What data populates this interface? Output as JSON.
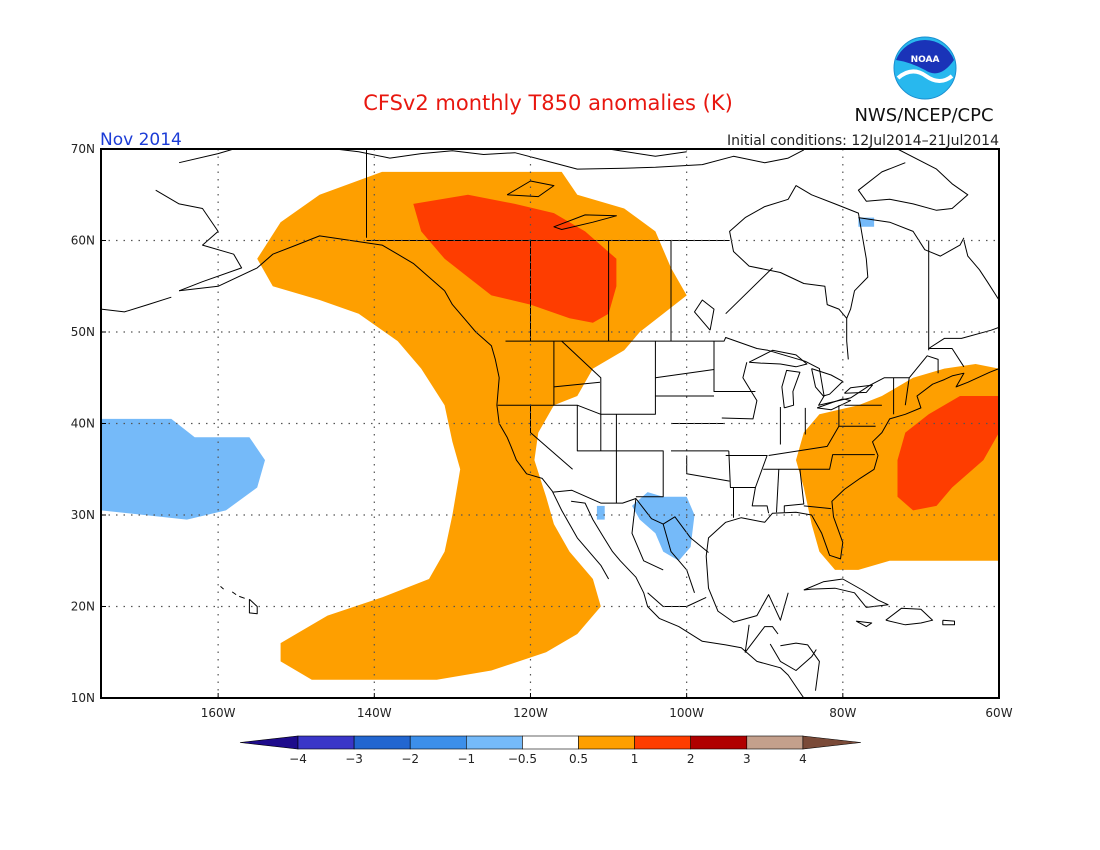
{
  "title": "CFSv2 monthly T850 anomalies (K)",
  "agency": "NWS/NCEP/CPC",
  "logo_text": "NOAA",
  "period": "Nov 2014",
  "initial_conditions": "Initial conditions: 12Jul2014–21Jul2014",
  "colors": {
    "title": "#e8170f",
    "period": "#1c3cd6",
    "logo_outer": "#28b8ee",
    "logo_inner": "#1a33b8",
    "bins": [
      "#1e0b8c",
      "#3a36c8",
      "#2266d0",
      "#3c8fea",
      "#75baf9",
      "#ffffff",
      "#fe9f00",
      "#fe3d00",
      "#b00000",
      "#c4a08c",
      "#7a4a38"
    ]
  },
  "map": {
    "projection": "equirectangular",
    "lon_range": [
      -175,
      -60
    ],
    "lat_range": [
      10,
      70
    ],
    "lon_ticks": [
      {
        "value": -160,
        "label": "160W"
      },
      {
        "value": -140,
        "label": "140W"
      },
      {
        "value": -120,
        "label": "120W"
      },
      {
        "value": -100,
        "label": "100W"
      },
      {
        "value": -80,
        "label": "80W"
      },
      {
        "value": -60,
        "label": "60W"
      }
    ],
    "lat_ticks": [
      {
        "value": 10,
        "label": "10N"
      },
      {
        "value": 20,
        "label": "20N"
      },
      {
        "value": 30,
        "label": "30N"
      },
      {
        "value": 40,
        "label": "40N"
      },
      {
        "value": 50,
        "label": "50N"
      },
      {
        "value": 60,
        "label": "60N"
      },
      {
        "value": 70,
        "label": "70N"
      }
    ],
    "anomaly_regions": [
      {
        "name": "NE Pacific and western Canada warm arc",
        "category": "0.5 to 1",
        "lonlat": [
          [
            -139,
            67.5
          ],
          [
            -116,
            67.5
          ],
          [
            -114,
            65
          ],
          [
            -108,
            63.5
          ],
          [
            -104,
            61
          ],
          [
            -102,
            57
          ],
          [
            -100,
            54
          ],
          [
            -103,
            52
          ],
          [
            -106,
            50
          ],
          [
            -108,
            48
          ],
          [
            -112,
            46
          ],
          [
            -114,
            43
          ],
          [
            -117,
            42
          ],
          [
            -119,
            39
          ],
          [
            -119.5,
            36
          ],
          [
            -118,
            32
          ],
          [
            -117,
            29
          ],
          [
            -115,
            26
          ],
          [
            -112,
            23
          ],
          [
            -111,
            20
          ],
          [
            -114,
            17
          ],
          [
            -118,
            15
          ],
          [
            -125,
            13
          ],
          [
            -132,
            12
          ],
          [
            -148,
            12
          ],
          [
            -152,
            14
          ],
          [
            -152,
            16
          ],
          [
            -146,
            19
          ],
          [
            -139,
            21
          ],
          [
            -133,
            23
          ],
          [
            -131,
            26
          ],
          [
            -130,
            30
          ],
          [
            -129,
            35
          ],
          [
            -130,
            38
          ],
          [
            -131,
            42
          ],
          [
            -134,
            46
          ],
          [
            -137,
            49
          ],
          [
            -142,
            52
          ],
          [
            -147,
            53.5
          ],
          [
            -153,
            55
          ],
          [
            -155,
            58
          ],
          [
            -152,
            62
          ],
          [
            -147,
            65
          ]
        ]
      },
      {
        "name": "Western Canada strong warm core",
        "category": "1 to 2",
        "lonlat": [
          [
            -135,
            64
          ],
          [
            -128,
            65
          ],
          [
            -122,
            64
          ],
          [
            -117,
            63
          ],
          [
            -113,
            61
          ],
          [
            -109,
            58
          ],
          [
            -109,
            55
          ],
          [
            -110,
            52
          ],
          [
            -112,
            51
          ],
          [
            -115,
            51.5
          ],
          [
            -120,
            53
          ],
          [
            -125,
            54
          ],
          [
            -128,
            56
          ],
          [
            -131,
            58
          ],
          [
            -134,
            61
          ]
        ]
      },
      {
        "name": "Eastern US and western Atlantic warm area",
        "category": "0.5 to 1",
        "lonlat": [
          [
            -60,
            46
          ],
          [
            -60,
            25
          ],
          [
            -74,
            25
          ],
          [
            -78,
            24
          ],
          [
            -81,
            24
          ],
          [
            -83,
            26
          ],
          [
            -84,
            29
          ],
          [
            -85,
            33
          ],
          [
            -86,
            36
          ],
          [
            -85,
            39
          ],
          [
            -83,
            41
          ],
          [
            -78,
            42
          ],
          [
            -75,
            43
          ],
          [
            -71,
            45
          ],
          [
            -67,
            46
          ],
          [
            -63,
            46.5
          ]
        ]
      },
      {
        "name": "Western Atlantic strong warm core",
        "category": "1 to 2",
        "lonlat": [
          [
            -60,
            43
          ],
          [
            -60,
            39
          ],
          [
            -62,
            36
          ],
          [
            -66,
            33
          ],
          [
            -68,
            31
          ],
          [
            -71,
            30.5
          ],
          [
            -73,
            32
          ],
          [
            -73,
            36
          ],
          [
            -72,
            39
          ],
          [
            -69,
            41
          ],
          [
            -65,
            43
          ]
        ]
      },
      {
        "name": "Central North Pacific cool area",
        "category": "-1 to -0.5",
        "lonlat": [
          [
            -175,
            40.5
          ],
          [
            -166,
            40.5
          ],
          [
            -163,
            38.5
          ],
          [
            -156,
            38.5
          ],
          [
            -154,
            36
          ],
          [
            -155,
            33
          ],
          [
            -159,
            30.5
          ],
          [
            -164,
            29.5
          ],
          [
            -175,
            30.5
          ]
        ]
      },
      {
        "name": "Northern Mexico and Texas cool area",
        "category": "-1 to -0.5",
        "lonlat": [
          [
            -103,
            32
          ],
          [
            -100,
            32
          ],
          [
            -99,
            30
          ],
          [
            -99.5,
            26.5
          ],
          [
            -101,
            25
          ],
          [
            -103,
            26
          ],
          [
            -104,
            28
          ],
          [
            -106,
            29.5
          ],
          [
            -107,
            31
          ],
          [
            -105,
            32.5
          ]
        ]
      },
      {
        "name": "Sonora cool patch",
        "category": "-1 to -0.5",
        "lonlat": [
          [
            -111.5,
            31
          ],
          [
            -110.5,
            31
          ],
          [
            -110.5,
            29.5
          ],
          [
            -111.5,
            29.5
          ]
        ]
      },
      {
        "name": "Hudson Strait cool patch",
        "category": "-1 to -0.5",
        "lonlat": [
          [
            -78,
            62.5
          ],
          [
            -76,
            62.5
          ],
          [
            -76,
            61.5
          ],
          [
            -78,
            61.5
          ]
        ]
      }
    ]
  },
  "colorbar": {
    "labels": [
      "−4",
      "−3",
      "−2",
      "−1",
      "−0.5",
      "0.5",
      "1",
      "2",
      "3",
      "4"
    ]
  }
}
